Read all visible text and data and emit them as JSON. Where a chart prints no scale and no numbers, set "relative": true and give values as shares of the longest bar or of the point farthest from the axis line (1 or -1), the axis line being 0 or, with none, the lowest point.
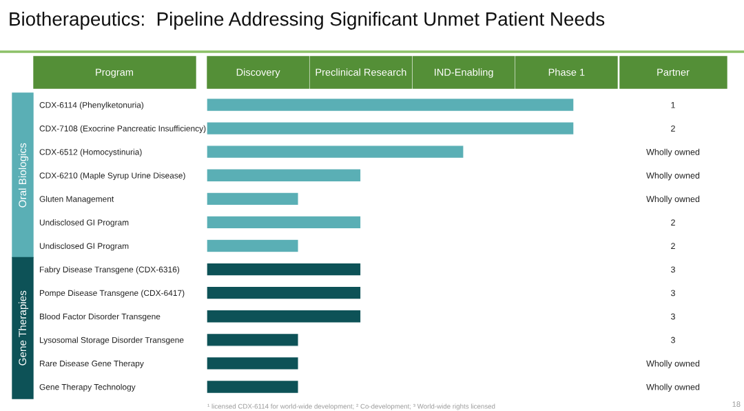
{
  "chart_data": {
    "type": "bar",
    "orientation": "horizontal",
    "title": "Biotherapeutics:  Pipeline Addressing Significant Unmet Patient Needs",
    "ylabel": "Program",
    "categories": [
      "CDX-6114 (Phenylketonuria)",
      "CDX-7108 (Exocrine Pancreatic Insufficiency)",
      "CDX-6512 (Homocystinuria)",
      "CDX-6210 (Maple Syrup Urine Disease)",
      "Gluten Management",
      "Undisclosed GI Program",
      "Undisclosed GI Program",
      "Fabry Disease Transgene (CDX-6316)",
      "Pompe Disease Transgene (CDX-6417)",
      "Blood Factor Disorder Transgene",
      "Lysosomal Storage Disorder Transgene",
      "Rare Disease Gene Therapy",
      "Gene Therapy Technology"
    ],
    "relative": true,
    "values": [
      1,
      1,
      0.7,
      0.42,
      0.25,
      0.42,
      0.25,
      0.42,
      0.42,
      0.42,
      0.25,
      0.25,
      0.25
    ],
    "colors": [
      "#5aafb5",
      "#5aafb5",
      "#5aafb5",
      "#5aafb5",
      "#5aafb5",
      "#5aafb5",
      "#5aafb5",
      "#0d5257",
      "#0d5257",
      "#0d5257",
      "#0d5257",
      "#0d5257",
      "#0d5257"
    ],
    "y2_categories": [
      "1",
      "2",
      "Wholly owned",
      "Wholly owned",
      "Wholly owned",
      "2",
      "2",
      "3",
      "3",
      "3",
      "3",
      "Wholly owned",
      "Wholly owned"
    ],
    "annotations": [
      "Discovery",
      "Preclinical Research",
      "IND-Enabling",
      "Phase 1",
      "Partner",
      "¹ licensed CDX-6114 for world-wide development; ² Co-development; ³ World-wide rights licensed",
      "18",
      "Oral Biologics",
      "Gene Therapies"
    ]
  }
}
